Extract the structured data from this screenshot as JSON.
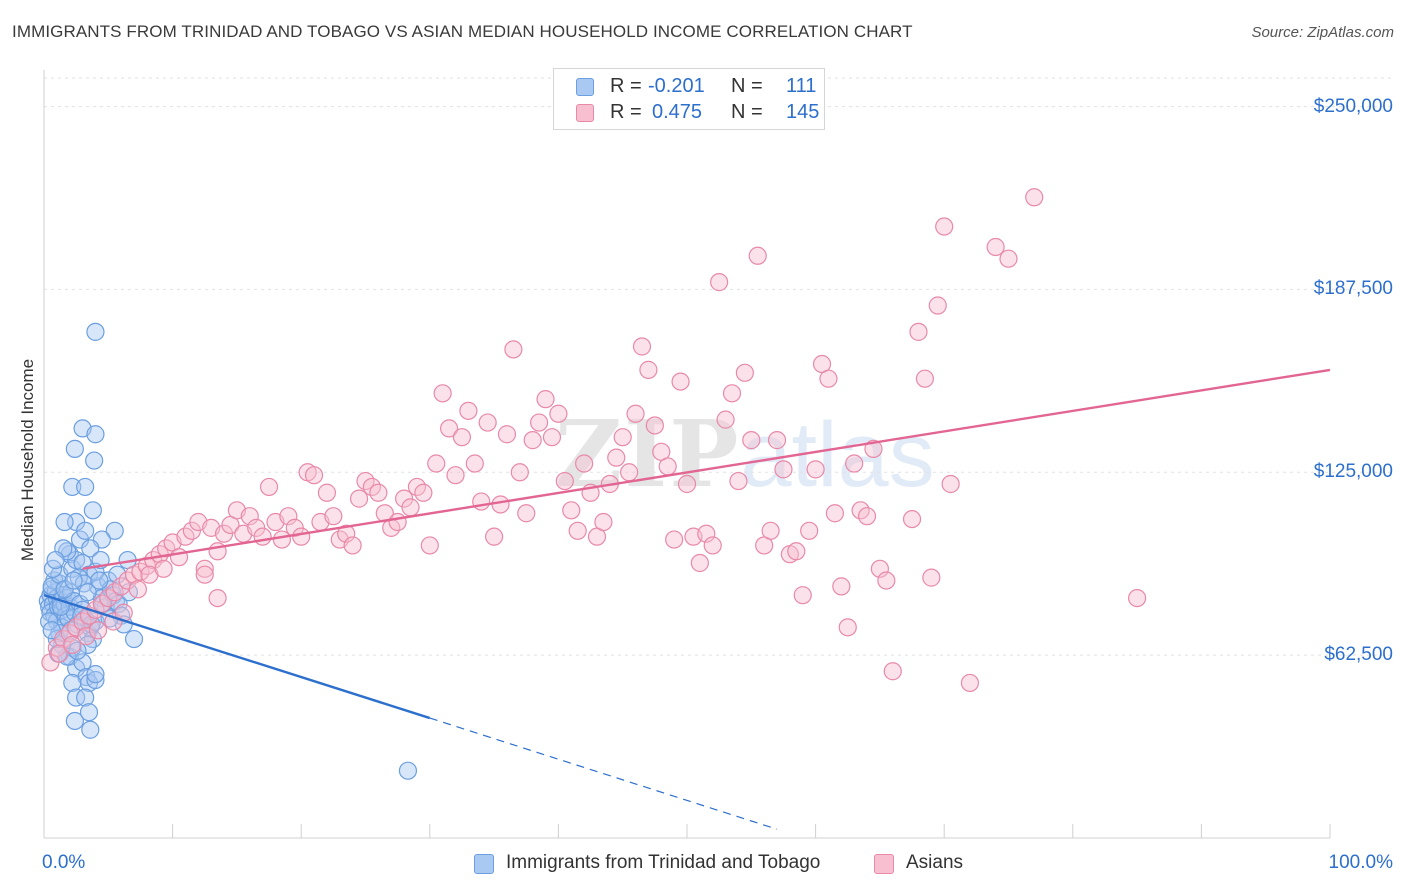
{
  "title": "IMMIGRANTS FROM TRINIDAD AND TOBAGO VS ASIAN MEDIAN HOUSEHOLD INCOME CORRELATION CHART",
  "source": "Source: ZipAtlas.com",
  "watermark": {
    "left": "ZIP",
    "right": "atlas"
  },
  "legend": [
    {
      "r_label": "R =",
      "r_value": "-0.201",
      "n_label": "N =",
      "n_value": "111",
      "color": "#a9c8f2",
      "border": "#6b9fe0"
    },
    {
      "r_label": "R =",
      "r_value": "0.475",
      "n_label": "N =",
      "n_value": "145",
      "color": "#f7bfd0",
      "border": "#e889a8"
    }
  ],
  "chart_data": {
    "type": "scatter",
    "title": "IMMIGRANTS FROM TRINIDAD AND TOBAGO VS ASIAN MEDIAN HOUSEHOLD INCOME CORRELATION CHART",
    "xlabel": "",
    "ylabel": "Median Household Income",
    "xlim": [
      0,
      100
    ],
    "ylim": [
      0,
      262500
    ],
    "x_tick_labels": [
      "0.0%",
      "100.0%"
    ],
    "y_ticks": [
      62500,
      125000,
      187500,
      250000
    ],
    "y_tick_labels": [
      "$62,500",
      "$125,000",
      "$187,500",
      "$250,000"
    ],
    "grid": true,
    "legend_position": "top-center",
    "series": [
      {
        "name": "Immigrants from Trinidad and Tobago",
        "color": "#6b9fe0",
        "fill": "#a9c8f2",
        "trend": {
          "x": [
            0,
            30
          ],
          "y": [
            83000,
            41000
          ],
          "dashed_to": [
            57,
            3000
          ]
        },
        "points": [
          [
            0.3,
            81000
          ],
          [
            0.4,
            79000
          ],
          [
            0.5,
            83000
          ],
          [
            0.6,
            85000
          ],
          [
            0.7,
            80000
          ],
          [
            0.5,
            77000
          ],
          [
            0.8,
            76000
          ],
          [
            0.9,
            84000
          ],
          [
            1.0,
            82000
          ],
          [
            1.1,
            79000
          ],
          [
            1.2,
            87000
          ],
          [
            1.3,
            81000
          ],
          [
            1.4,
            78000
          ],
          [
            1.0,
            74000
          ],
          [
            1.5,
            83000
          ],
          [
            1.6,
            80000
          ],
          [
            0.8,
            88000
          ],
          [
            1.7,
            76000
          ],
          [
            1.8,
            82000
          ],
          [
            2.0,
            79000
          ],
          [
            0.6,
            86000
          ],
          [
            1.2,
            90000
          ],
          [
            1.4,
            72000
          ],
          [
            1.9,
            75000
          ],
          [
            2.1,
            84000
          ],
          [
            2.3,
            81000
          ],
          [
            2.4,
            77000
          ],
          [
            2.6,
            73000
          ],
          [
            2.8,
            80000
          ],
          [
            3.0,
            78000
          ],
          [
            3.2,
            75000
          ],
          [
            3.4,
            70000
          ],
          [
            3.6,
            72000
          ],
          [
            3.8,
            68000
          ],
          [
            4.0,
            74000
          ],
          [
            4.2,
            86000
          ],
          [
            4.5,
            82000
          ],
          [
            4.8,
            79000
          ],
          [
            5.0,
            88000
          ],
          [
            5.2,
            85000
          ],
          [
            5.4,
            83000
          ],
          [
            5.6,
            81000
          ],
          [
            5.8,
            80000
          ],
          [
            6.0,
            76000
          ],
          [
            6.2,
            73000
          ],
          [
            2.0,
            97000
          ],
          [
            2.2,
            92000
          ],
          [
            2.5,
            95000
          ],
          [
            1.8,
            98000
          ],
          [
            3.0,
            94000
          ],
          [
            1.5,
            99000
          ],
          [
            2.8,
            102000
          ],
          [
            3.5,
            90000
          ],
          [
            4.0,
            91000
          ],
          [
            2.5,
            108000
          ],
          [
            1.6,
            108000
          ],
          [
            3.2,
            105000
          ],
          [
            5.5,
            105000
          ],
          [
            4.5,
            102000
          ],
          [
            6.5,
            95000
          ],
          [
            3.8,
            112000
          ],
          [
            2.2,
            120000
          ],
          [
            3.2,
            120000
          ],
          [
            2.4,
            133000
          ],
          [
            3.0,
            140000
          ],
          [
            4.0,
            138000
          ],
          [
            3.9,
            129000
          ],
          [
            4.0,
            173000
          ],
          [
            1.4,
            66000
          ],
          [
            2.0,
            62000
          ],
          [
            2.2,
            65000
          ],
          [
            2.5,
            58000
          ],
          [
            3.0,
            60000
          ],
          [
            3.3,
            55000
          ],
          [
            3.5,
            53000
          ],
          [
            4.0,
            54000
          ],
          [
            4.0,
            56000
          ],
          [
            2.2,
            53000
          ],
          [
            2.5,
            48000
          ],
          [
            3.2,
            48000
          ],
          [
            2.4,
            40000
          ],
          [
            3.5,
            43000
          ],
          [
            3.6,
            37000
          ],
          [
            7.0,
            68000
          ],
          [
            3.4,
            66000
          ],
          [
            1.8,
            62000
          ],
          [
            2.6,
            64000
          ],
          [
            28.3,
            23000
          ],
          [
            1.2,
            70000
          ],
          [
            1.1,
            63000
          ],
          [
            0.7,
            92000
          ],
          [
            0.9,
            95000
          ],
          [
            2.7,
            89000
          ],
          [
            3.1,
            87000
          ],
          [
            3.4,
            84000
          ],
          [
            1.3,
            79000
          ],
          [
            2.9,
            76000
          ],
          [
            4.3,
            88000
          ],
          [
            4.6,
            80000
          ],
          [
            5.1,
            75000
          ],
          [
            1.0,
            68000
          ],
          [
            2.1,
            71000
          ],
          [
            3.7,
            73000
          ],
          [
            0.4,
            74000
          ],
          [
            0.6,
            71000
          ],
          [
            1.6,
            85000
          ],
          [
            2.3,
            88000
          ],
          [
            5.7,
            90000
          ],
          [
            6.6,
            84000
          ],
          [
            3.6,
            99000
          ],
          [
            4.4,
            95000
          ]
        ]
      },
      {
        "name": "Asians",
        "color": "#e889a8",
        "fill": "#f7bfd0",
        "trend": {
          "x": [
            3,
            100
          ],
          "y": [
            92000,
            160000
          ]
        },
        "points": [
          [
            0.5,
            60000
          ],
          [
            1.0,
            65000
          ],
          [
            1.5,
            68000
          ],
          [
            2.0,
            70000
          ],
          [
            2.5,
            72000
          ],
          [
            3.0,
            74000
          ],
          [
            3.5,
            76000
          ],
          [
            4.0,
            78000
          ],
          [
            4.5,
            80000
          ],
          [
            5.0,
            82000
          ],
          [
            5.5,
            84000
          ],
          [
            6.0,
            86000
          ],
          [
            6.5,
            88000
          ],
          [
            7.0,
            90000
          ],
          [
            7.5,
            91000
          ],
          [
            8.0,
            93000
          ],
          [
            8.5,
            95000
          ],
          [
            9.0,
            97000
          ],
          [
            9.5,
            99000
          ],
          [
            10.0,
            101000
          ],
          [
            1.2,
            63000
          ],
          [
            2.2,
            66000
          ],
          [
            3.3,
            69000
          ],
          [
            4.2,
            71000
          ],
          [
            5.4,
            74000
          ],
          [
            6.2,
            77000
          ],
          [
            7.3,
            85000
          ],
          [
            8.2,
            90000
          ],
          [
            9.3,
            92000
          ],
          [
            10.5,
            96000
          ],
          [
            11.0,
            103000
          ],
          [
            11.5,
            105000
          ],
          [
            12.0,
            108000
          ],
          [
            12.5,
            92000
          ],
          [
            13.0,
            106000
          ],
          [
            13.5,
            98000
          ],
          [
            14.0,
            104000
          ],
          [
            14.5,
            107000
          ],
          [
            15.0,
            112000
          ],
          [
            15.5,
            104000
          ],
          [
            16.0,
            110000
          ],
          [
            16.5,
            106000
          ],
          [
            17.0,
            103000
          ],
          [
            17.5,
            120000
          ],
          [
            18.0,
            108000
          ],
          [
            18.5,
            102000
          ],
          [
            19.0,
            110000
          ],
          [
            19.5,
            106000
          ],
          [
            20.0,
            103000
          ],
          [
            20.5,
            125000
          ],
          [
            21.0,
            124000
          ],
          [
            21.5,
            108000
          ],
          [
            22.0,
            118000
          ],
          [
            22.5,
            110000
          ],
          [
            23.0,
            102000
          ],
          [
            23.5,
            104000
          ],
          [
            24.0,
            100000
          ],
          [
            24.5,
            116000
          ],
          [
            25.0,
            122000
          ],
          [
            25.5,
            120000
          ],
          [
            26.0,
            118000
          ],
          [
            26.5,
            111000
          ],
          [
            27.0,
            106000
          ],
          [
            27.5,
            108000
          ],
          [
            28.0,
            116000
          ],
          [
            28.5,
            113000
          ],
          [
            29.0,
            120000
          ],
          [
            29.5,
            118000
          ],
          [
            30.0,
            100000
          ],
          [
            30.5,
            128000
          ],
          [
            31.0,
            152000
          ],
          [
            31.5,
            140000
          ],
          [
            32.0,
            124000
          ],
          [
            32.5,
            137000
          ],
          [
            33.0,
            146000
          ],
          [
            33.5,
            128000
          ],
          [
            34.0,
            115000
          ],
          [
            34.5,
            142000
          ],
          [
            35.0,
            103000
          ],
          [
            35.5,
            114000
          ],
          [
            36.0,
            138000
          ],
          [
            36.5,
            167000
          ],
          [
            37.0,
            125000
          ],
          [
            37.5,
            111000
          ],
          [
            38.0,
            136000
          ],
          [
            38.5,
            142000
          ],
          [
            39.0,
            150000
          ],
          [
            39.5,
            137000
          ],
          [
            40.0,
            145000
          ],
          [
            40.5,
            122000
          ],
          [
            41.0,
            112000
          ],
          [
            41.5,
            105000
          ],
          [
            42.0,
            128000
          ],
          [
            42.5,
            118000
          ],
          [
            43.0,
            103000
          ],
          [
            43.5,
            108000
          ],
          [
            44.0,
            121000
          ],
          [
            44.5,
            130000
          ],
          [
            45.0,
            137000
          ],
          [
            45.5,
            125000
          ],
          [
            46.0,
            145000
          ],
          [
            46.5,
            168000
          ],
          [
            47.0,
            160000
          ],
          [
            47.5,
            141000
          ],
          [
            48.0,
            132000
          ],
          [
            48.5,
            127000
          ],
          [
            49.0,
            102000
          ],
          [
            49.5,
            156000
          ],
          [
            50.0,
            121000
          ],
          [
            50.5,
            103000
          ],
          [
            51.0,
            94000
          ],
          [
            51.5,
            104000
          ],
          [
            52.0,
            100000
          ],
          [
            52.5,
            190000
          ],
          [
            53.0,
            143000
          ],
          [
            53.5,
            152000
          ],
          [
            54.0,
            122000
          ],
          [
            54.5,
            159000
          ],
          [
            55.0,
            136000
          ],
          [
            55.5,
            199000
          ],
          [
            56.0,
            100000
          ],
          [
            56.5,
            105000
          ],
          [
            57.0,
            136000
          ],
          [
            57.5,
            126000
          ],
          [
            58.0,
            97000
          ],
          [
            58.5,
            98000
          ],
          [
            59.0,
            83000
          ],
          [
            59.5,
            105000
          ],
          [
            60.0,
            126000
          ],
          [
            60.5,
            162000
          ],
          [
            61.0,
            157000
          ],
          [
            61.5,
            111000
          ],
          [
            62.0,
            86000
          ],
          [
            62.5,
            72000
          ],
          [
            63.0,
            128000
          ],
          [
            63.5,
            112000
          ],
          [
            64.0,
            110000
          ],
          [
            64.5,
            133000
          ],
          [
            65.0,
            92000
          ],
          [
            65.5,
            88000
          ],
          [
            66.0,
            57000
          ],
          [
            67.5,
            109000
          ],
          [
            68.0,
            173000
          ],
          [
            68.5,
            157000
          ],
          [
            69.0,
            89000
          ],
          [
            69.5,
            182000
          ],
          [
            70.0,
            209000
          ],
          [
            70.5,
            121000
          ],
          [
            72.0,
            53000
          ],
          [
            74.0,
            202000
          ],
          [
            75.0,
            198000
          ],
          [
            77.0,
            219000
          ],
          [
            85.0,
            82000
          ],
          [
            12.5,
            90000
          ],
          [
            13.5,
            82000
          ]
        ]
      }
    ]
  },
  "bottom_legend": [
    {
      "label": "Immigrants from Trinidad and Tobago",
      "color": "#a9c8f2",
      "border": "#6b9fe0"
    },
    {
      "label": "Asians",
      "color": "#f7bfd0",
      "border": "#e889a8"
    }
  ]
}
